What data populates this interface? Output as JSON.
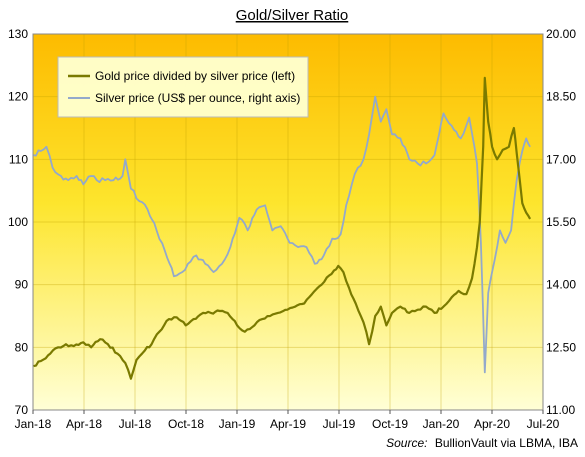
{
  "chart_data": {
    "type": "line",
    "title": "Gold/Silver Ratio",
    "source_label": "Source:",
    "source_text": "BullionVault via LBMA, IBA",
    "x_ticks": [
      "Jan-18",
      "Apr-18",
      "Jul-18",
      "Oct-18",
      "Jan-19",
      "Apr-19",
      "Jul-19",
      "Oct-19",
      "Jan-20",
      "Apr-20",
      "Jul-20"
    ],
    "ylim_left": [
      70,
      130
    ],
    "y_ticks_left": [
      "70",
      "80",
      "90",
      "100",
      "110",
      "120",
      "130"
    ],
    "ylim_right": [
      11.0,
      20.0
    ],
    "y_ticks_right": [
      "11.00",
      "12.50",
      "14.00",
      "15.50",
      "17.00",
      "18.50",
      "20.00"
    ],
    "grid": true,
    "legend_position": "top-left",
    "series": [
      {
        "name": "Gold price divided by silver price (left)",
        "axis": "left",
        "color": "#7a7a00",
        "points": [
          [
            "2018-01-02",
            77.0
          ],
          [
            "2018-01-15",
            77.8
          ],
          [
            "2018-02-01",
            79.0
          ],
          [
            "2018-02-15",
            80.0
          ],
          [
            "2018-03-01",
            80.5
          ],
          [
            "2018-03-15",
            80.2
          ],
          [
            "2018-04-01",
            80.8
          ],
          [
            "2018-04-15",
            80.0
          ],
          [
            "2018-05-01",
            81.3
          ],
          [
            "2018-05-15",
            80.5
          ],
          [
            "2018-06-01",
            79.0
          ],
          [
            "2018-06-15",
            77.5
          ],
          [
            "2018-06-25",
            75.0
          ],
          [
            "2018-07-05",
            78.0
          ],
          [
            "2018-07-20",
            79.5
          ],
          [
            "2018-08-01",
            80.5
          ],
          [
            "2018-08-15",
            82.5
          ],
          [
            "2018-09-01",
            84.5
          ],
          [
            "2018-09-15",
            84.8
          ],
          [
            "2018-10-01",
            83.5
          ],
          [
            "2018-10-15",
            84.5
          ],
          [
            "2018-11-01",
            85.5
          ],
          [
            "2018-11-15",
            85.5
          ],
          [
            "2018-12-01",
            85.8
          ],
          [
            "2018-12-15",
            85.5
          ],
          [
            "2019-01-01",
            83.5
          ],
          [
            "2019-01-15",
            82.5
          ],
          [
            "2019-02-01",
            83.5
          ],
          [
            "2019-02-15",
            84.5
          ],
          [
            "2019-03-01",
            85.0
          ],
          [
            "2019-03-15",
            85.5
          ],
          [
            "2019-04-01",
            86.0
          ],
          [
            "2019-04-15",
            86.5
          ],
          [
            "2019-05-01",
            87.0
          ],
          [
            "2019-05-15",
            88.5
          ],
          [
            "2019-06-01",
            90.0
          ],
          [
            "2019-06-15",
            91.5
          ],
          [
            "2019-07-01",
            93.0
          ],
          [
            "2019-07-10",
            92.0
          ],
          [
            "2019-07-20",
            89.5
          ],
          [
            "2019-08-01",
            87.0
          ],
          [
            "2019-08-15",
            84.0
          ],
          [
            "2019-08-25",
            80.5
          ],
          [
            "2019-09-05",
            85.0
          ],
          [
            "2019-09-15",
            86.5
          ],
          [
            "2019-09-25",
            83.5
          ],
          [
            "2019-10-05",
            85.5
          ],
          [
            "2019-10-20",
            86.5
          ],
          [
            "2019-11-05",
            85.5
          ],
          [
            "2019-11-20",
            86.0
          ],
          [
            "2019-12-05",
            86.5
          ],
          [
            "2019-12-20",
            85.5
          ],
          [
            "2020-01-05",
            86.5
          ],
          [
            "2020-01-20",
            88.0
          ],
          [
            "2020-02-01",
            89.0
          ],
          [
            "2020-02-15",
            88.5
          ],
          [
            "2020-02-25",
            91.0
          ],
          [
            "2020-03-05",
            96.0
          ],
          [
            "2020-03-10",
            100.0
          ],
          [
            "2020-03-16",
            112.0
          ],
          [
            "2020-03-19",
            123.0
          ],
          [
            "2020-03-25",
            116.0
          ],
          [
            "2020-04-01",
            112.0
          ],
          [
            "2020-04-10",
            110.0
          ],
          [
            "2020-04-20",
            111.5
          ],
          [
            "2020-05-01",
            112.0
          ],
          [
            "2020-05-10",
            115.0
          ],
          [
            "2020-05-15",
            111.0
          ],
          [
            "2020-05-25",
            103.0
          ],
          [
            "2020-06-01",
            101.5
          ],
          [
            "2020-06-08",
            100.5
          ]
        ]
      },
      {
        "name": "Silver price (US$ per ounce, right axis)",
        "axis": "right",
        "color": "#93a9cb",
        "points": [
          [
            "2018-01-02",
            17.1
          ],
          [
            "2018-01-15",
            17.2
          ],
          [
            "2018-01-25",
            17.3
          ],
          [
            "2018-02-05",
            16.8
          ],
          [
            "2018-02-20",
            16.6
          ],
          [
            "2018-03-05",
            16.5
          ],
          [
            "2018-03-20",
            16.6
          ],
          [
            "2018-04-01",
            16.4
          ],
          [
            "2018-04-15",
            16.6
          ],
          [
            "2018-04-25",
            16.5
          ],
          [
            "2018-05-10",
            16.5
          ],
          [
            "2018-05-25",
            16.5
          ],
          [
            "2018-06-10",
            16.6
          ],
          [
            "2018-06-15",
            17.0
          ],
          [
            "2018-06-25",
            16.3
          ],
          [
            "2018-07-10",
            16.0
          ],
          [
            "2018-07-25",
            15.8
          ],
          [
            "2018-08-10",
            15.3
          ],
          [
            "2018-08-25",
            14.8
          ],
          [
            "2018-09-10",
            14.2
          ],
          [
            "2018-09-25",
            14.3
          ],
          [
            "2018-10-05",
            14.5
          ],
          [
            "2018-10-20",
            14.7
          ],
          [
            "2018-11-05",
            14.5
          ],
          [
            "2018-11-20",
            14.3
          ],
          [
            "2018-12-05",
            14.5
          ],
          [
            "2018-12-20",
            14.9
          ],
          [
            "2019-01-05",
            15.6
          ],
          [
            "2019-01-20",
            15.3
          ],
          [
            "2019-02-05",
            15.8
          ],
          [
            "2019-02-20",
            15.9
          ],
          [
            "2019-03-05",
            15.3
          ],
          [
            "2019-03-20",
            15.4
          ],
          [
            "2019-04-05",
            15.0
          ],
          [
            "2019-04-20",
            14.9
          ],
          [
            "2019-05-05",
            14.9
          ],
          [
            "2019-05-20",
            14.5
          ],
          [
            "2019-06-05",
            14.7
          ],
          [
            "2019-06-20",
            15.1
          ],
          [
            "2019-07-05",
            15.2
          ],
          [
            "2019-07-15",
            15.9
          ],
          [
            "2019-07-25",
            16.4
          ],
          [
            "2019-08-05",
            16.8
          ],
          [
            "2019-08-15",
            17.0
          ],
          [
            "2019-08-25",
            17.6
          ],
          [
            "2019-09-05",
            18.5
          ],
          [
            "2019-09-15",
            17.9
          ],
          [
            "2019-09-25",
            18.2
          ],
          [
            "2019-10-05",
            17.6
          ],
          [
            "2019-10-20",
            17.5
          ],
          [
            "2019-11-05",
            17.0
          ],
          [
            "2019-11-20",
            16.9
          ],
          [
            "2019-12-05",
            16.9
          ],
          [
            "2019-12-20",
            17.1
          ],
          [
            "2020-01-05",
            18.1
          ],
          [
            "2020-01-20",
            17.8
          ],
          [
            "2020-02-05",
            17.5
          ],
          [
            "2020-02-20",
            18.0
          ],
          [
            "2020-03-05",
            16.9
          ],
          [
            "2020-03-12",
            15.0
          ],
          [
            "2020-03-19",
            11.9
          ],
          [
            "2020-03-25",
            13.8
          ],
          [
            "2020-04-01",
            14.3
          ],
          [
            "2020-04-15",
            15.3
          ],
          [
            "2020-04-25",
            15.0
          ],
          [
            "2020-05-05",
            15.3
          ],
          [
            "2020-05-15",
            16.5
          ],
          [
            "2020-05-25",
            17.2
          ],
          [
            "2020-06-01",
            17.5
          ],
          [
            "2020-06-08",
            17.3
          ]
        ]
      }
    ]
  }
}
